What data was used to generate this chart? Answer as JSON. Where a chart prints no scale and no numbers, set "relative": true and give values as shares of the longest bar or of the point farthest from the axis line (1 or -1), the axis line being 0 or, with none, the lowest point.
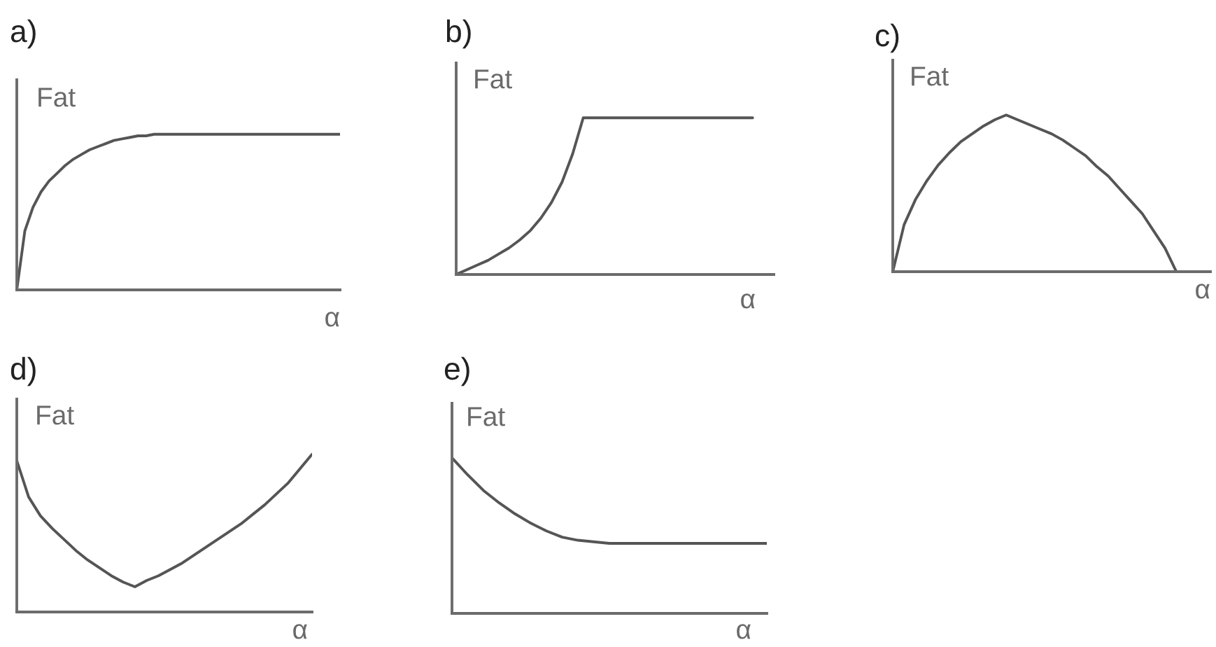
{
  "chart_data": [
    {
      "type": "line",
      "title": "a)",
      "ylabel": "Fat",
      "xlabel": "α",
      "relative": true,
      "categories": [
        null,
        null,
        null,
        null,
        null,
        null,
        null,
        null,
        null,
        null,
        null,
        null,
        null,
        null,
        null,
        null,
        null,
        null,
        null,
        null,
        null,
        null,
        null,
        null,
        null,
        null,
        null,
        null,
        null,
        null,
        null,
        null,
        null,
        null,
        null,
        null,
        null,
        null,
        null,
        null,
        null
      ],
      "series": [
        {
          "color": "#555555",
          "values": [
            0,
            0.38,
            0.53,
            0.63,
            0.7,
            0.75,
            0.8,
            0.84,
            0.87,
            0.9,
            0.92,
            0.94,
            0.96,
            0.97,
            0.98,
            0.99,
            0.99,
            1,
            1,
            1,
            1,
            1,
            1,
            1,
            1,
            1,
            1,
            1,
            1,
            1,
            1,
            1,
            1,
            1,
            1,
            1,
            1,
            1,
            1,
            1,
            1
          ]
        }
      ]
    },
    {
      "type": "line",
      "title": "b)",
      "ylabel": "Fat",
      "xlabel": "α",
      "relative": true,
      "categories": [
        null,
        null,
        null,
        null,
        null,
        null,
        null,
        null,
        null,
        null,
        null,
        null,
        null,
        null,
        null,
        null,
        null,
        null,
        null,
        null,
        null,
        null,
        null,
        null,
        null,
        null,
        null,
        null,
        null,
        null,
        null
      ],
      "series": [
        {
          "color": "#555555",
          "values": [
            0,
            0.03,
            0.06,
            0.09,
            0.13,
            0.17,
            0.22,
            0.28,
            0.36,
            0.46,
            0.59,
            0.77,
            1,
            1,
            1,
            1,
            1,
            1,
            1,
            1,
            1,
            1,
            1,
            1,
            1,
            1,
            1,
            1,
            1,
            null,
            null
          ]
        }
      ]
    },
    {
      "type": "line",
      "title": "c)",
      "ylabel": "Fat",
      "xlabel": "α",
      "relative": true,
      "categories": [
        null,
        null,
        null,
        null,
        null,
        null,
        null,
        null,
        null,
        null,
        null,
        null,
        null,
        null,
        null,
        null,
        null,
        null,
        null,
        null,
        null,
        null,
        null,
        null,
        null,
        null,
        null,
        null,
        null
      ],
      "series": [
        {
          "color": "#555555",
          "values": [
            0,
            0.3,
            0.46,
            0.58,
            0.68,
            0.76,
            0.83,
            0.88,
            0.93,
            0.97,
            1,
            0.97,
            0.94,
            0.91,
            0.88,
            0.84,
            0.79,
            0.74,
            0.67,
            0.61,
            0.53,
            0.45,
            0.37,
            0.26,
            0.15,
            0,
            null,
            null,
            null
          ]
        }
      ]
    },
    {
      "type": "line",
      "title": "d)",
      "ylabel": "Fat",
      "xlabel": "α",
      "relative": true,
      "categories": [
        null,
        null,
        null,
        null,
        null,
        null,
        null,
        null,
        null,
        null,
        null,
        null,
        null,
        null,
        null,
        null,
        null,
        null,
        null,
        null,
        null,
        null,
        null,
        null,
        null,
        null
      ],
      "series": [
        {
          "color": "#555555",
          "values": [
            0.96,
            0.73,
            0.61,
            0.53,
            0.46,
            0.39,
            0.33,
            0.28,
            0.23,
            0.19,
            0.16,
            0.2,
            0.23,
            0.27,
            0.31,
            0.36,
            0.41,
            0.46,
            0.51,
            0.56,
            0.62,
            0.68,
            0.75,
            0.82,
            0.91,
            1
          ]
        }
      ]
    },
    {
      "type": "line",
      "title": "e)",
      "ylabel": "Fat",
      "xlabel": "α",
      "relative": true,
      "categories": [
        null,
        null,
        null,
        null,
        null,
        null,
        null,
        null,
        null,
        null,
        null,
        null,
        null,
        null,
        null,
        null,
        null,
        null,
        null,
        null,
        null
      ],
      "series": [
        {
          "color": "#555555",
          "values": [
            1,
            0.89,
            0.79,
            0.71,
            0.64,
            0.58,
            0.53,
            0.49,
            0.47,
            0.46,
            0.45,
            0.45,
            0.45,
            0.45,
            0.45,
            0.45,
            0.45,
            0.45,
            0.45,
            0.45,
            0.45
          ]
        }
      ]
    }
  ]
}
